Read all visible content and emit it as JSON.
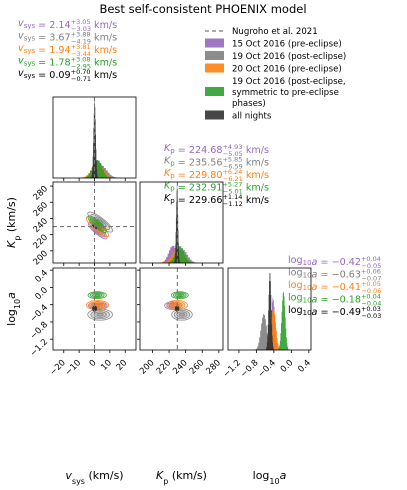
{
  "chart_data": {
    "type": "corner",
    "title": "Best self-consistent PHOENIX model",
    "parameters": [
      {
        "key": "vsys",
        "label": "v_sys (km/s)",
        "ticks": [
          -20,
          -10,
          0,
          10,
          20
        ],
        "range": [
          -27,
          27
        ]
      },
      {
        "key": "kp",
        "label": "K_p (km/s)",
        "ticks": [
          200,
          220,
          240,
          260,
          280
        ],
        "range": [
          185,
          285
        ]
      },
      {
        "key": "loga",
        "label": "log10 a",
        "ticks": [
          -1.2,
          -0.8,
          -0.4,
          0.0,
          0.4
        ],
        "range": [
          -1.45,
          0.45
        ]
      }
    ],
    "reference": {
      "name": "Nugroho et al. 2021",
      "vsys": 0,
      "kp": 230
    },
    "series": [
      {
        "name": "15 Oct 2016 (pre-eclipse)",
        "color": "#9467bd",
        "vsys": {
          "median": 2.14,
          "plus": 3.05,
          "minus": 3.03
        },
        "kp": {
          "median": 224.68,
          "plus": 4.93,
          "minus": 5.05
        },
        "loga": {
          "median": -0.42,
          "plus": 0.04,
          "minus": 0.05
        }
      },
      {
        "name": "19 Oct 2016 (post-eclipse)",
        "color": "#7f7f7f",
        "vsys": {
          "median": 3.67,
          "plus": 3.88,
          "minus": 4.19
        },
        "kp": {
          "median": 235.56,
          "plus": 5.85,
          "minus": 6.59
        },
        "loga": {
          "median": -0.63,
          "plus": 0.06,
          "minus": 0.07
        }
      },
      {
        "name": "20 Oct 2016 (pre-eclipse)",
        "color": "#ff7f0e",
        "vsys": {
          "median": 1.94,
          "plus": 3.81,
          "minus": 3.44
        },
        "kp": {
          "median": 229.8,
          "plus": 6.24,
          "minus": 6.21
        },
        "loga": {
          "median": -0.41,
          "plus": 0.05,
          "minus": 0.06
        }
      },
      {
        "name": "19 Oct 2016 (post-eclipse, symmetric to pre-eclipse phases)",
        "color": "#2ca02c",
        "vsys": {
          "median": 1.78,
          "plus": 3.08,
          "minus": 2.95
        },
        "kp": {
          "median": 232.91,
          "plus": 5.27,
          "minus": 5.01
        },
        "loga": {
          "median": -0.18,
          "plus": 0.04,
          "minus": 0.04
        }
      },
      {
        "name": "all nights",
        "color": "#333333",
        "vsys": {
          "median": 0.09,
          "plus": 0.7,
          "minus": 0.71
        },
        "kp": {
          "median": 229.66,
          "plus": 1.14,
          "minus": 1.12
        },
        "loga": {
          "median": -0.49,
          "plus": 0.03,
          "minus": 0.03
        }
      }
    ],
    "legend_location": "top-right",
    "grid": false
  }
}
